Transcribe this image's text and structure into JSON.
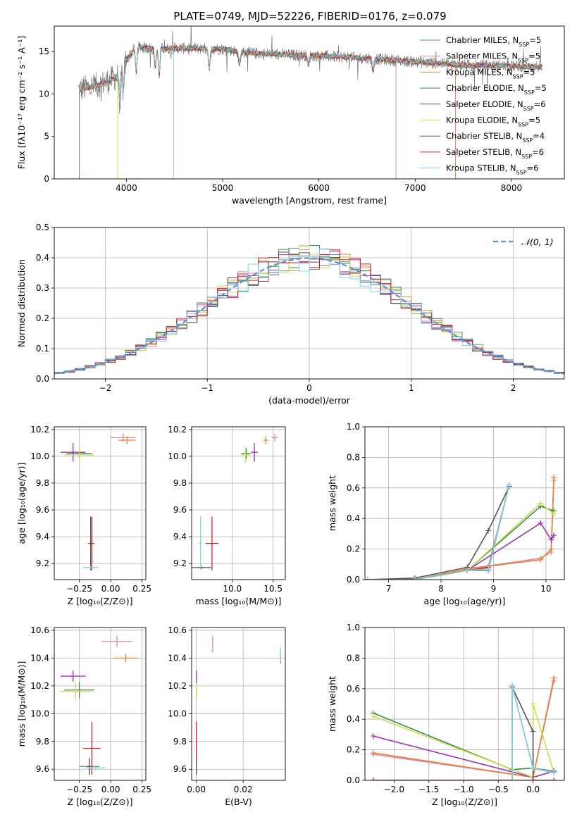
{
  "figure_title": "PLATE=0749, MJD=52226, FIBERID=0176, z=0.079",
  "colors": {
    "Chabrier MILES": "#5b8f8a",
    "Salpeter MILES": "#d989a9",
    "Kroupa MILES": "#e8823a",
    "Chabrier ELODIE": "#3a8a5a",
    "Salpeter ELODIE": "#9b30b8",
    "Kroupa ELODIE": "#c8e04a",
    "Chabrier STELIB": "#555555",
    "Salpeter STELIB": "#cc2222",
    "Kroupa STELIB": "#7fd0e0"
  },
  "chart_data": [
    {
      "id": "spectrum",
      "type": "line",
      "title": "PLATE=0749, MJD=52226, FIBERID=0176, z=0.079",
      "xlabel": "wavelength [Angstrom, rest frame]",
      "ylabel": "Flux [fλ10⁻¹⁷ erg cm⁻² s⁻¹ A⁻¹]",
      "xlim": [
        3250,
        8550
      ],
      "ylim": [
        0,
        18
      ],
      "xticks": [
        4000,
        5000,
        6000,
        7000,
        8000
      ],
      "yticks": [
        0,
        5,
        10,
        15
      ],
      "grid": false,
      "legend": "right",
      "legend_entries": [
        {
          "label": "Chabrier MILES",
          "nssp": "5"
        },
        {
          "label": "Salpeter MILES",
          "nssp": "5"
        },
        {
          "label": "Kroupa MILES",
          "nssp": "5"
        },
        {
          "label": "Chabrier ELODIE",
          "nssp": "5"
        },
        {
          "label": "Salpeter ELODIE",
          "nssp": "6"
        },
        {
          "label": "Kroupa ELODIE",
          "nssp": "5"
        },
        {
          "label": "Chabrier STELIB",
          "nssp": "4"
        },
        {
          "label": "Salpeter STELIB",
          "nssp": "6"
        },
        {
          "label": "Kroupa STELIB",
          "nssp": "6"
        }
      ],
      "continuum": [
        [
          3500,
          10.5
        ],
        [
          3700,
          11
        ],
        [
          3900,
          12
        ],
        [
          4000,
          14
        ],
        [
          4100,
          15.6
        ],
        [
          4300,
          15.3
        ],
        [
          4600,
          15.4
        ],
        [
          5000,
          15.3
        ],
        [
          5200,
          14.9
        ],
        [
          5500,
          14.7
        ],
        [
          6000,
          14.5
        ],
        [
          6500,
          14.2
        ],
        [
          7000,
          13.8
        ],
        [
          7500,
          13.4
        ],
        [
          8000,
          13.3
        ],
        [
          8300,
          13.2
        ]
      ]
    },
    {
      "id": "residuals",
      "type": "line",
      "xlabel": "(data-model)/error",
      "ylabel": "Normed distribution",
      "xlim": [
        -2.5,
        2.5
      ],
      "ylim": [
        0,
        0.5
      ],
      "xticks": [
        -2,
        -1,
        0,
        1,
        2
      ],
      "yticks": [
        0.0,
        0.1,
        0.2,
        0.3,
        0.4,
        0.5
      ],
      "grid": true,
      "legend": "top-right",
      "series": [
        {
          "name": "𝒩(0, 1)",
          "mu": 0,
          "sigma": 1
        }
      ]
    },
    {
      "id": "age_vs_Z",
      "type": "scatter",
      "xlabel": "Z [log₁₀(Z/Z⊙)]",
      "ylabel": "age  [log₁₀(age/yr)]",
      "xlim": [
        -0.45,
        0.28
      ],
      "ylim": [
        9.08,
        10.22
      ],
      "xticks": [
        -0.25,
        0.0,
        0.25
      ],
      "yticks": [
        9.2,
        9.4,
        9.6,
        9.8,
        10.0,
        10.2
      ],
      "grid": true,
      "points": [
        {
          "m": "Chabrier MILES",
          "x": -0.15,
          "y": 9.17,
          "ex": 0.05,
          "ey": 0.02
        },
        {
          "m": "Salpeter MILES",
          "x": 0.1,
          "y": 10.14,
          "ex": 0.1,
          "ey": 0.03
        },
        {
          "m": "Kroupa MILES",
          "x": 0.13,
          "y": 10.12,
          "ex": 0.07,
          "ey": 0.03
        },
        {
          "m": "Chabrier ELODIE",
          "x": -0.25,
          "y": 10.02,
          "ex": 0.1,
          "ey": 0.04
        },
        {
          "m": "Salpeter ELODIE",
          "x": -0.3,
          "y": 10.03,
          "ex": 0.1,
          "ey": 0.07
        },
        {
          "m": "Kroupa ELODIE",
          "x": -0.25,
          "y": 10.01,
          "ex": 0.12,
          "ey": 0.06
        },
        {
          "m": "Chabrier STELIB",
          "x": -0.16,
          "y": 9.35,
          "ex": 0.02,
          "ey": 0.2
        },
        {
          "m": "Salpeter STELIB",
          "x": -0.15,
          "y": 9.35,
          "ex": 0.02,
          "ey": 0.2
        },
        {
          "m": "Kroupa STELIB",
          "x": -0.16,
          "y": 9.17,
          "ex": 0.06,
          "ey": 0.01
        }
      ]
    },
    {
      "id": "age_vs_mass",
      "type": "scatter",
      "xlabel": "mass [log₁₀(M/M⊙)]",
      "xlim": [
        9.5,
        10.65
      ],
      "ylim": [
        9.08,
        10.22
      ],
      "xticks": [
        10.0,
        10.5
      ],
      "yticks": [
        9.2,
        9.4,
        9.6,
        9.8,
        10.0,
        10.2
      ],
      "grid": true,
      "points": [
        {
          "m": "Chabrier MILES",
          "x": 9.62,
          "y": 9.17,
          "ex": 0.05,
          "ey": 0.01
        },
        {
          "m": "Salpeter MILES",
          "x": 10.52,
          "y": 10.14,
          "ex": 0.04,
          "ey": 0.03
        },
        {
          "m": "Kroupa MILES",
          "x": 10.41,
          "y": 10.12,
          "ex": 0.03,
          "ey": 0.03
        },
        {
          "m": "Chabrier ELODIE",
          "x": 10.17,
          "y": 10.02,
          "ex": 0.06,
          "ey": 0.04
        },
        {
          "m": "Salpeter ELODIE",
          "x": 10.27,
          "y": 10.03,
          "ex": 0.04,
          "ey": 0.07
        },
        {
          "m": "Kroupa ELODIE",
          "x": 10.16,
          "y": 10.01,
          "ex": 0.06,
          "ey": 0.06
        },
        {
          "m": "Chabrier STELIB",
          "x": 9.62,
          "y": 9.17,
          "ex": 0.12,
          "ey": 0.01
        },
        {
          "m": "Salpeter STELIB",
          "x": 9.75,
          "y": 9.35,
          "ex": 0.08,
          "ey": 0.2
        },
        {
          "m": "Kroupa STELIB",
          "x": 9.61,
          "y": 9.35,
          "ex": 0.02,
          "ey": 0.2
        }
      ]
    },
    {
      "id": "weight_vs_age",
      "type": "line",
      "xlabel": "age  [log₁₀(age/yr)]",
      "ylabel": "mass weight",
      "xlim": [
        6.55,
        10.35
      ],
      "ylim": [
        0,
        1.0
      ],
      "xticks": [
        7,
        8,
        9,
        10
      ],
      "yticks": [
        0.0,
        0.2,
        0.4,
        0.6,
        0.8,
        1.0
      ],
      "grid": true,
      "series": [
        {
          "name": "Chabrier MILES",
          "x": [
            6.6,
            7.5,
            8.5,
            8.9,
            9.3
          ],
          "y": [
            0.0,
            0.0,
            0.06,
            0.06,
            0.62
          ]
        },
        {
          "name": "Salpeter MILES",
          "x": [
            6.6,
            7.5,
            8.5,
            9.9,
            10.1,
            10.15
          ],
          "y": [
            0.0,
            0.0,
            0.07,
            0.14,
            0.18,
            0.65
          ]
        },
        {
          "name": "Kroupa MILES",
          "x": [
            6.6,
            7.5,
            8.5,
            9.9,
            10.1,
            10.15
          ],
          "y": [
            0.0,
            0.0,
            0.07,
            0.13,
            0.2,
            0.67
          ]
        },
        {
          "name": "Chabrier ELODIE",
          "x": [
            6.6,
            7.5,
            8.5,
            9.9,
            10.15
          ],
          "y": [
            0.0,
            0.0,
            0.06,
            0.48,
            0.45
          ]
        },
        {
          "name": "Salpeter ELODIE",
          "x": [
            6.6,
            7.5,
            8.5,
            9.9,
            10.1,
            10.15
          ],
          "y": [
            0.0,
            0.0,
            0.06,
            0.37,
            0.26,
            0.29
          ]
        },
        {
          "name": "Kroupa ELODIE",
          "x": [
            6.6,
            7.5,
            8.5,
            9.9,
            10.15
          ],
          "y": [
            0.0,
            0.0,
            0.06,
            0.5,
            0.43
          ]
        },
        {
          "name": "Chabrier STELIB",
          "x": [
            6.6,
            7.5,
            8.5,
            8.9,
            9.3
          ],
          "y": [
            0.0,
            0.01,
            0.08,
            0.32,
            0.61
          ]
        },
        {
          "name": "Salpeter STELIB",
          "x": [
            6.6,
            7.5,
            8.5,
            8.9,
            9.3
          ],
          "y": [
            0.0,
            0.0,
            0.06,
            0.08,
            0.62
          ]
        },
        {
          "name": "Kroupa STELIB",
          "x": [
            6.6,
            7.5,
            8.5,
            8.9,
            9.3
          ],
          "y": [
            0.0,
            0.0,
            0.06,
            0.07,
            0.62
          ]
        }
      ]
    },
    {
      "id": "mass_vs_Z",
      "type": "scatter",
      "xlabel": "Z [log₁₀(Z/Z⊙)]",
      "ylabel": "mass [log₁₀(M/M⊙)]",
      "xlim": [
        -0.45,
        0.28
      ],
      "ylim": [
        9.52,
        10.62
      ],
      "xticks": [
        -0.25,
        0.0,
        0.25
      ],
      "yticks": [
        9.6,
        9.8,
        10.0,
        10.2,
        10.4,
        10.6
      ],
      "grid": true,
      "points": [
        {
          "m": "Chabrier MILES",
          "x": -0.17,
          "y": 9.62,
          "ex": 0.08,
          "ey": 0.05
        },
        {
          "m": "Salpeter MILES",
          "x": 0.05,
          "y": 10.52,
          "ex": 0.12,
          "ey": 0.04
        },
        {
          "m": "Kroupa MILES",
          "x": 0.12,
          "y": 10.4,
          "ex": 0.1,
          "ey": 0.03
        },
        {
          "m": "Chabrier ELODIE",
          "x": -0.25,
          "y": 10.17,
          "ex": 0.12,
          "ey": 0.06
        },
        {
          "m": "Salpeter ELODIE",
          "x": -0.3,
          "y": 10.27,
          "ex": 0.1,
          "ey": 0.04
        },
        {
          "m": "Kroupa ELODIE",
          "x": -0.28,
          "y": 10.16,
          "ex": 0.13,
          "ey": 0.06
        },
        {
          "m": "Chabrier STELIB",
          "x": -0.17,
          "y": 9.62,
          "ex": 0.02,
          "ey": 0.06
        },
        {
          "m": "Salpeter STELIB",
          "x": -0.15,
          "y": 9.75,
          "ex": 0.07,
          "ey": 0.19
        },
        {
          "m": "Kroupa STELIB",
          "x": -0.12,
          "y": 9.61,
          "ex": 0.08,
          "ey": 0.02
        }
      ]
    },
    {
      "id": "mass_vs_ebv",
      "type": "scatter",
      "xlabel": "E(B-V)",
      "xlim": [
        -0.002,
        0.038
      ],
      "ylim": [
        9.52,
        10.62
      ],
      "xticks": [
        0.0,
        0.02
      ],
      "yticks": [
        9.6,
        9.8,
        10.0,
        10.2,
        10.4,
        10.6
      ],
      "grid": true,
      "points": [
        {
          "m": "Chabrier MILES",
          "x": 0.0,
          "y": 9.62,
          "ex": 0,
          "ey": 0.05
        },
        {
          "m": "Salpeter MILES",
          "x": 0.007,
          "y": 10.5,
          "ex": 0,
          "ey": 0.06
        },
        {
          "m": "Kroupa MILES",
          "x": 0.036,
          "y": 10.4,
          "ex": 0,
          "ey": 0.04
        },
        {
          "m": "Chabrier ELODIE",
          "x": 0.0,
          "y": 10.17,
          "ex": 0,
          "ey": 0.06
        },
        {
          "m": "Salpeter ELODIE",
          "x": 0.0,
          "y": 10.27,
          "ex": 0,
          "ey": 0.04
        },
        {
          "m": "Kroupa ELODIE",
          "x": 0.0,
          "y": 10.16,
          "ex": 0,
          "ey": 0.06
        },
        {
          "m": "Chabrier STELIB",
          "x": 0.0,
          "y": 9.62,
          "ex": 0,
          "ey": 0.06
        },
        {
          "m": "Salpeter STELIB",
          "x": 0.0,
          "y": 9.8,
          "ex": 0,
          "ey": 0.14
        },
        {
          "m": "Kroupa STELIB",
          "x": 0.036,
          "y": 10.43,
          "ex": 0,
          "ey": 0.05
        }
      ]
    },
    {
      "id": "weight_vs_Z",
      "type": "line",
      "xlabel": "Z [log₁₀(Z/Z⊙)]",
      "ylabel": "mass weight",
      "xlim": [
        -2.42,
        0.45
      ],
      "ylim": [
        0,
        1.0
      ],
      "xticks": [
        -2.0,
        -1.5,
        -1.0,
        -0.5,
        0.0
      ],
      "yticks": [
        0.0,
        0.2,
        0.4,
        0.6,
        0.8,
        1.0
      ],
      "grid": true,
      "series": [
        {
          "name": "Chabrier MILES",
          "x": [
            -2.3,
            -0.3,
            -0.3,
            0.0,
            0.3
          ],
          "y": [
            0.0,
            0.0,
            0.62,
            0.08,
            0.06
          ]
        },
        {
          "name": "Salpeter MILES",
          "x": [
            -2.3,
            0.0,
            0.3
          ],
          "y": [
            0.17,
            0.02,
            0.65
          ]
        },
        {
          "name": "Kroupa MILES",
          "x": [
            -2.3,
            0.0,
            0.3
          ],
          "y": [
            0.18,
            0.02,
            0.67
          ]
        },
        {
          "name": "Chabrier ELODIE",
          "x": [
            -2.3,
            -0.3,
            0.0,
            0.3
          ],
          "y": [
            0.44,
            0.07,
            0.08,
            0.05
          ]
        },
        {
          "name": "Salpeter ELODIE",
          "x": [
            -2.3,
            0.0,
            0.3
          ],
          "y": [
            0.29,
            0.02,
            0.06
          ]
        },
        {
          "name": "Kroupa ELODIE",
          "x": [
            -2.3,
            0.0,
            0.0,
            0.3
          ],
          "y": [
            0.42,
            0.02,
            0.5,
            0.05
          ]
        },
        {
          "name": "Chabrier STELIB",
          "x": [
            -0.3,
            0.0,
            0.0
          ],
          "y": [
            0.61,
            0.32,
            0.0
          ]
        },
        {
          "name": "Salpeter STELIB",
          "x": [
            -2.3,
            0.0,
            0.3
          ],
          "y": [
            0.0,
            0.0,
            0.0
          ]
        },
        {
          "name": "Kroupa STELIB",
          "x": [
            -0.3,
            -0.3,
            0.0,
            0.3
          ],
          "y": [
            0.0,
            0.62,
            0.08,
            0.05
          ]
        }
      ]
    }
  ]
}
